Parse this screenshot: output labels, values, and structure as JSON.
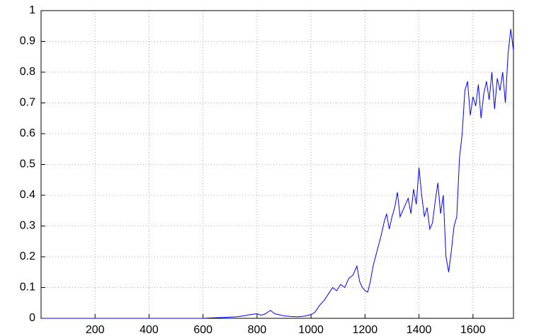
{
  "chart_data": {
    "type": "line",
    "x": [
      0,
      100,
      200,
      300,
      400,
      500,
      600,
      625,
      650,
      675,
      700,
      725,
      750,
      775,
      800,
      815,
      830,
      850,
      865,
      880,
      900,
      925,
      950,
      975,
      1000,
      1015,
      1030,
      1050,
      1065,
      1080,
      1095,
      1110,
      1125,
      1140,
      1155,
      1170,
      1180,
      1190,
      1200,
      1210,
      1220,
      1230,
      1245,
      1260,
      1270,
      1280,
      1290,
      1300,
      1310,
      1320,
      1330,
      1340,
      1350,
      1360,
      1370,
      1380,
      1390,
      1400,
      1410,
      1420,
      1430,
      1440,
      1450,
      1460,
      1470,
      1480,
      1490,
      1500,
      1510,
      1520,
      1530,
      1540,
      1550,
      1560,
      1570,
      1580,
      1590,
      1600,
      1610,
      1620,
      1630,
      1640,
      1650,
      1660,
      1670,
      1680,
      1690,
      1700,
      1710,
      1720,
      1730,
      1740,
      1750
    ],
    "values": [
      0,
      0,
      0,
      0,
      0,
      0,
      0,
      0.001,
      0.002,
      0.003,
      0.004,
      0.005,
      0.008,
      0.012,
      0.015,
      0.01,
      0.014,
      0.026,
      0.015,
      0.012,
      0.008,
      0.006,
      0.005,
      0.007,
      0.012,
      0.02,
      0.04,
      0.06,
      0.08,
      0.1,
      0.09,
      0.11,
      0.1,
      0.13,
      0.14,
      0.17,
      0.12,
      0.1,
      0.09,
      0.085,
      0.12,
      0.17,
      0.22,
      0.27,
      0.31,
      0.34,
      0.29,
      0.33,
      0.36,
      0.41,
      0.33,
      0.35,
      0.37,
      0.39,
      0.34,
      0.42,
      0.37,
      0.49,
      0.4,
      0.33,
      0.36,
      0.29,
      0.31,
      0.38,
      0.44,
      0.34,
      0.4,
      0.2,
      0.15,
      0.22,
      0.3,
      0.33,
      0.52,
      0.6,
      0.74,
      0.77,
      0.66,
      0.72,
      0.69,
      0.76,
      0.65,
      0.73,
      0.77,
      0.71,
      0.8,
      0.68,
      0.78,
      0.74,
      0.8,
      0.7,
      0.86,
      0.94,
      0.87
    ],
    "color": "#0000ff",
    "xlim": [
      0,
      1750
    ],
    "xticks": [
      200,
      400,
      600,
      800,
      1000,
      1200,
      1400,
      1600
    ],
    "ylim": [
      0,
      1
    ],
    "yticks": [
      0,
      0.1,
      0.2,
      0.3,
      0.4,
      0.5,
      0.6,
      0.7,
      0.8,
      0.9,
      1
    ],
    "grid": true
  }
}
